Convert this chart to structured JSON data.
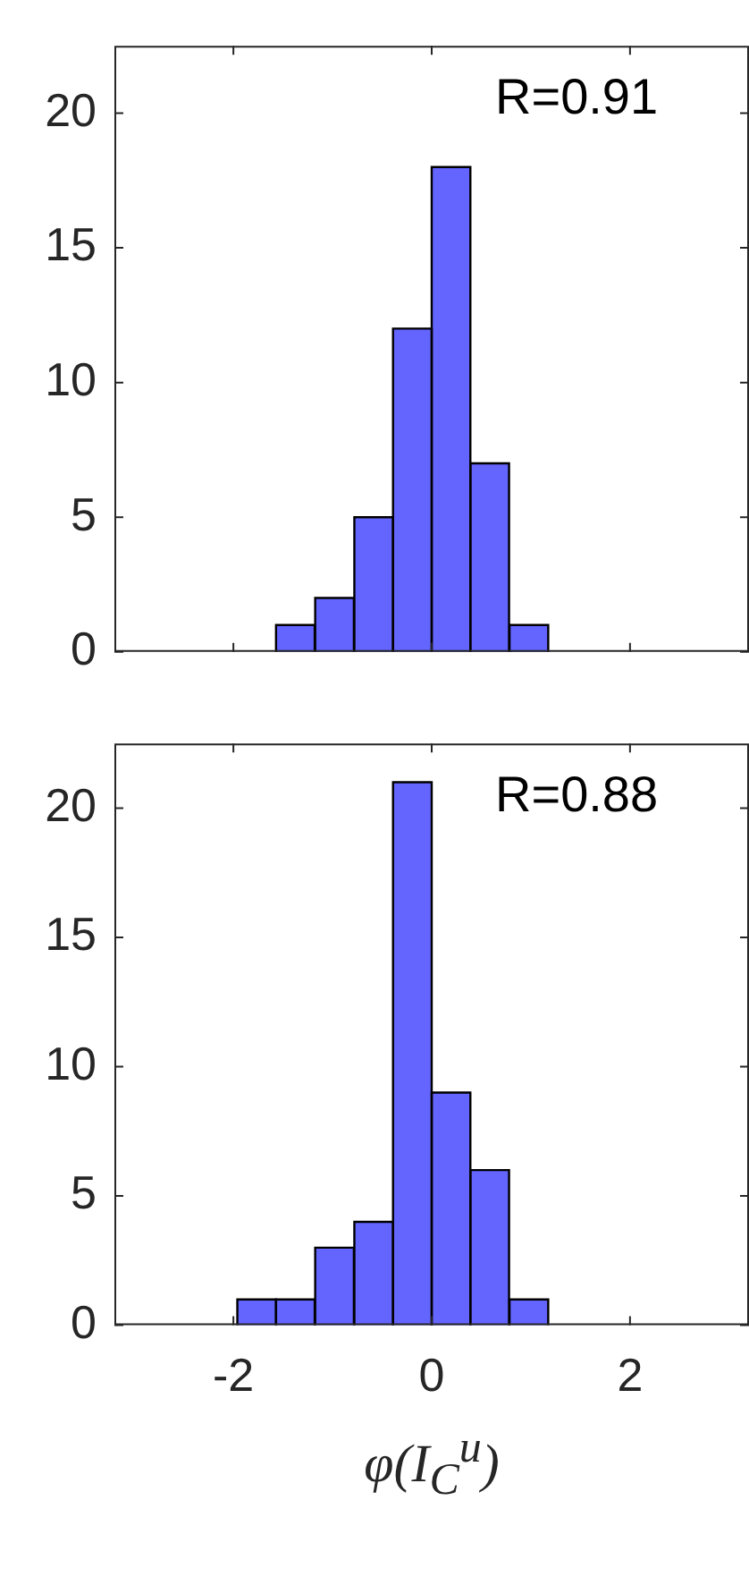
{
  "chart_data": [
    {
      "type": "histogram",
      "bins": [
        -1.57,
        -1.18,
        -0.78,
        -0.39,
        0,
        0.39,
        0.78,
        1.18
      ],
      "values": [
        1,
        2,
        5,
        12,
        18,
        7,
        1
      ],
      "color": "#6464ff",
      "xlim": [
        -3.2,
        3.2
      ],
      "xticks": [
        -2,
        0,
        2
      ],
      "ylim": [
        0,
        22.5
      ],
      "yticks": [
        0,
        5,
        10,
        15,
        20
      ],
      "tick_labels": "y",
      "grid": false,
      "annotations": [
        "R=0.91"
      ]
    },
    {
      "type": "histogram",
      "bins": [
        -1.96,
        -1.57,
        -1.18,
        -0.78,
        -0.39,
        0,
        0.39,
        0.78,
        1.18
      ],
      "values": [
        1,
        1,
        3,
        4,
        21,
        9,
        6,
        1
      ],
      "color": "#6464ff",
      "xlim": [
        -3.2,
        3.2
      ],
      "xticks": [
        -2,
        0,
        2
      ],
      "ylim": [
        0,
        22.5
      ],
      "yticks": [
        0,
        5,
        10,
        15,
        20
      ],
      "grid": false,
      "xlabel": "φ(I$_{C}$$^{u}$)",
      "annotations": [
        "R=0.88"
      ]
    }
  ]
}
